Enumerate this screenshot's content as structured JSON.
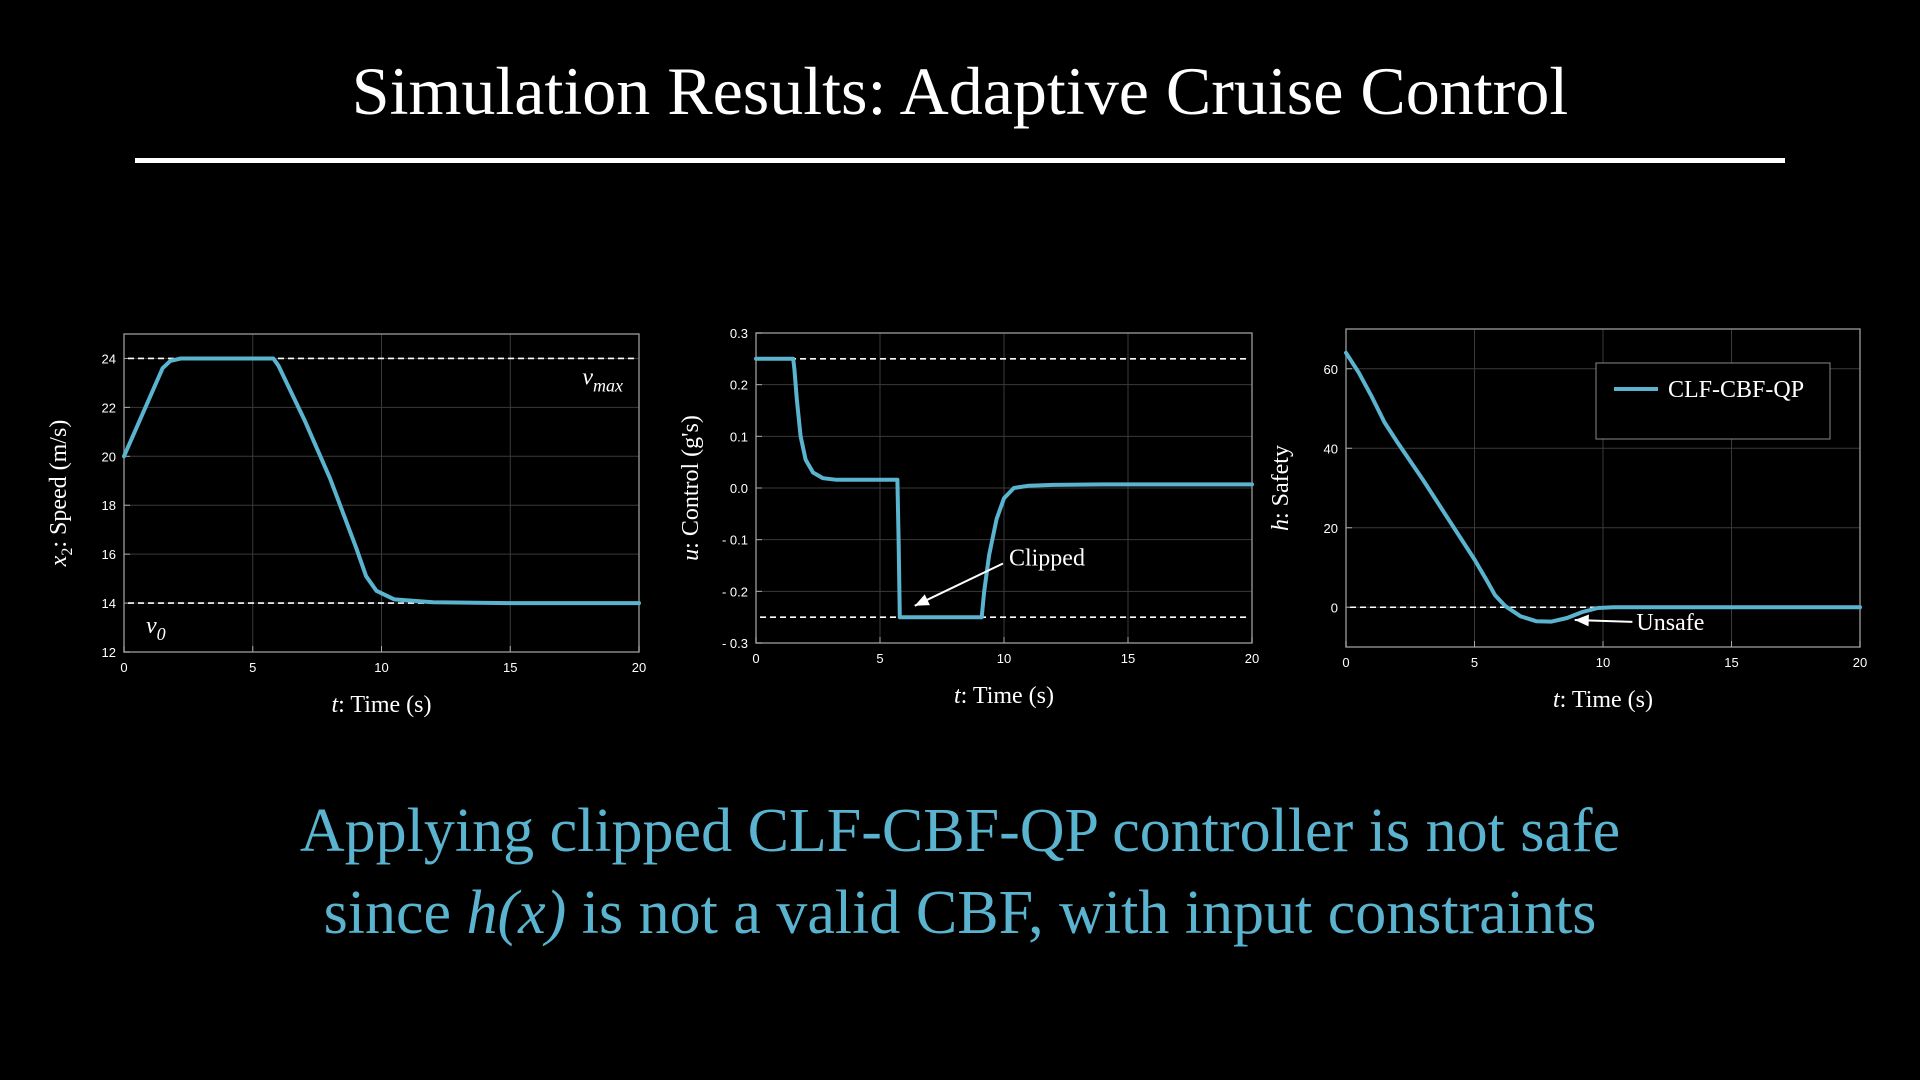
{
  "slide": {
    "title": "Simulation Results: Adaptive Cruise Control",
    "caption_line1": "Applying clipped CLF-CBF-QP controller is not safe",
    "caption_line2_pre": "since ",
    "caption_line2_math": "h(x)",
    "caption_line2_post": " is not a valid CBF, with input constraints",
    "accent_color": "#5ab4cf"
  },
  "chart_data": [
    {
      "type": "line",
      "xlabel_var": "t",
      "xlabel": ": Time (s)",
      "ylabel_var": "x",
      "ylabel_sub": "2",
      "ylabel": ": Speed (m/s)",
      "xlim": [
        0,
        20
      ],
      "ylim": [
        12,
        25
      ],
      "xticks": [
        0,
        5,
        10,
        15,
        20
      ],
      "yticks": [
        12,
        14,
        16,
        18,
        20,
        22,
        24
      ],
      "grid": true,
      "hlines": [
        {
          "y": 24,
          "label": "v",
          "label_sub": "max",
          "label_pos": "top-right"
        },
        {
          "y": 14,
          "label": "v",
          "label_sub": "0",
          "label_pos": "bottom-left"
        }
      ],
      "series": [
        {
          "x": [
            0,
            1.5,
            1.8,
            2.2,
            3,
            5,
            5.8,
            6,
            7,
            8,
            9,
            9.4,
            9.8,
            10.5,
            12,
            15,
            20
          ],
          "y": [
            20,
            23.6,
            23.9,
            24,
            24,
            24,
            24,
            23.7,
            21.5,
            19.1,
            16.3,
            15.1,
            14.5,
            14.15,
            14.03,
            14,
            14
          ]
        }
      ]
    },
    {
      "type": "line",
      "xlabel_var": "t",
      "xlabel": ": Time (s)",
      "ylabel_var": "u",
      "ylabel": ": Control (g's)",
      "xlim": [
        0,
        20
      ],
      "ylim": [
        -0.3,
        0.3
      ],
      "xticks": [
        0,
        5,
        10,
        15,
        20
      ],
      "yticks": [
        -0.3,
        -0.2,
        -0.1,
        0.0,
        0.1,
        0.2,
        0.3
      ],
      "ytick_labels": [
        "- 0.3",
        "- 0.2",
        "- 0.1",
        "0.0",
        "0.1",
        "0.2",
        "0.3"
      ],
      "grid": true,
      "hlines": [
        {
          "y": 0.25
        },
        {
          "y": -0.25
        }
      ],
      "annotation": {
        "text": "Clipped",
        "x": 10.2,
        "y": -0.15,
        "arrow_to": [
          6.4,
          -0.228
        ]
      },
      "series": [
        {
          "x": [
            0,
            1.5,
            1.55,
            1.65,
            1.8,
            2.0,
            2.3,
            2.7,
            3.2,
            5.7,
            5.75,
            5.8,
            9.1,
            9.2,
            9.4,
            9.7,
            10.0,
            10.4,
            11.0,
            12.0,
            14.0,
            17.0,
            20.0
          ],
          "y": [
            0.25,
            0.25,
            0.23,
            0.17,
            0.1,
            0.055,
            0.03,
            0.019,
            0.016,
            0.016,
            -0.1,
            -0.25,
            -0.25,
            -0.2,
            -0.13,
            -0.06,
            -0.02,
            0,
            0.0045,
            0.006,
            0.007,
            0.007,
            0.007
          ]
        }
      ]
    },
    {
      "type": "line",
      "xlabel_var": "t",
      "xlabel": ": Time (s)",
      "ylabel_var": "h",
      "ylabel": ": Safety",
      "xlim": [
        0,
        20
      ],
      "ylim": [
        -10,
        70
      ],
      "xticks": [
        0,
        5,
        10,
        15,
        20
      ],
      "yticks": [
        0,
        20,
        40,
        60
      ],
      "grid": true,
      "hlines": [
        {
          "y": 0
        }
      ],
      "legend": {
        "entries": [
          "CLF-CBF-QP"
        ],
        "position": "top-right"
      },
      "annotation": {
        "text": "Unsafe",
        "x": 11.3,
        "y": -5.7,
        "arrow_to": [
          8.9,
          -3.2
        ]
      },
      "series": [
        {
          "name": "CLF-CBF-QP",
          "x": [
            0,
            0.5,
            1,
            1.5,
            2,
            3,
            4,
            5,
            5.5,
            5.8,
            6.2,
            6.8,
            7.4,
            8,
            8.6,
            9.2,
            9.8,
            10.4,
            12,
            16,
            20
          ],
          "y": [
            64,
            59,
            53,
            46.5,
            41.5,
            32,
            22,
            12,
            6.5,
            3,
            0.3,
            -2.3,
            -3.5,
            -3.6,
            -2.7,
            -1.2,
            -0.2,
            0,
            0,
            0,
            0
          ]
        }
      ]
    }
  ]
}
